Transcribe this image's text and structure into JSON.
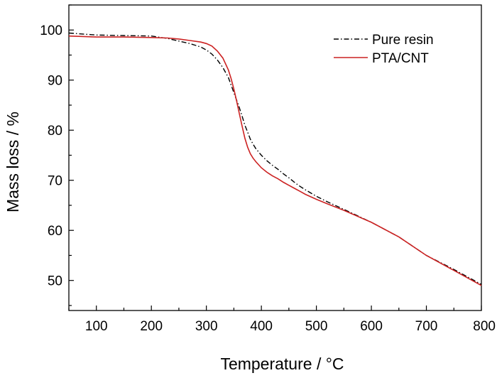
{
  "chart_data": {
    "type": "line",
    "xlabel": "Temperature / °C",
    "ylabel": "Mass loss / %",
    "xlim": [
      50,
      800
    ],
    "ylim": [
      44,
      105
    ],
    "xticks": [
      100,
      200,
      300,
      400,
      500,
      600,
      700,
      800
    ],
    "yticks": [
      50,
      60,
      70,
      80,
      90,
      100
    ],
    "grid": false,
    "legend_position": "top-right",
    "series": [
      {
        "name": "Pure resin",
        "color": "#000000",
        "dash": "dash-dot",
        "x": [
          50,
          100,
          150,
          200,
          230,
          250,
          270,
          290,
          300,
          310,
          320,
          330,
          340,
          350,
          360,
          365,
          370,
          375,
          380,
          385,
          390,
          400,
          410,
          420,
          430,
          440,
          450,
          460,
          470,
          480,
          500,
          520,
          550,
          600,
          650,
          700,
          750,
          800
        ],
        "y": [
          99.4,
          99.0,
          98.9,
          98.8,
          98.3,
          97.8,
          97.3,
          96.6,
          96.0,
          95.2,
          94.0,
          92.5,
          90.5,
          87.5,
          84.5,
          82.8,
          81.0,
          79.6,
          78.2,
          77.2,
          76.3,
          75.0,
          73.9,
          73.0,
          72.2,
          71.3,
          70.5,
          69.6,
          68.8,
          68.1,
          66.8,
          65.7,
          64.2,
          61.6,
          58.7,
          55.0,
          52.2,
          49.2
        ]
      },
      {
        "name": "PTA/CNT",
        "color": "#cc2222",
        "dash": "solid",
        "x": [
          50,
          100,
          150,
          200,
          230,
          250,
          270,
          290,
          300,
          310,
          320,
          330,
          340,
          345,
          350,
          355,
          360,
          365,
          370,
          375,
          380,
          385,
          390,
          400,
          410,
          420,
          430,
          440,
          450,
          460,
          470,
          480,
          500,
          520,
          550,
          600,
          650,
          700,
          750,
          800
        ],
        "y": [
          98.8,
          98.6,
          98.6,
          98.5,
          98.4,
          98.2,
          97.9,
          97.6,
          97.3,
          96.8,
          95.8,
          94.4,
          92.0,
          90.3,
          88.2,
          85.8,
          83.3,
          80.8,
          78.4,
          76.6,
          75.3,
          74.4,
          73.7,
          72.5,
          71.6,
          70.9,
          70.3,
          69.6,
          69.0,
          68.4,
          67.8,
          67.2,
          66.2,
          65.3,
          64.0,
          61.6,
          58.7,
          55.0,
          52.0,
          49.0
        ]
      }
    ]
  }
}
